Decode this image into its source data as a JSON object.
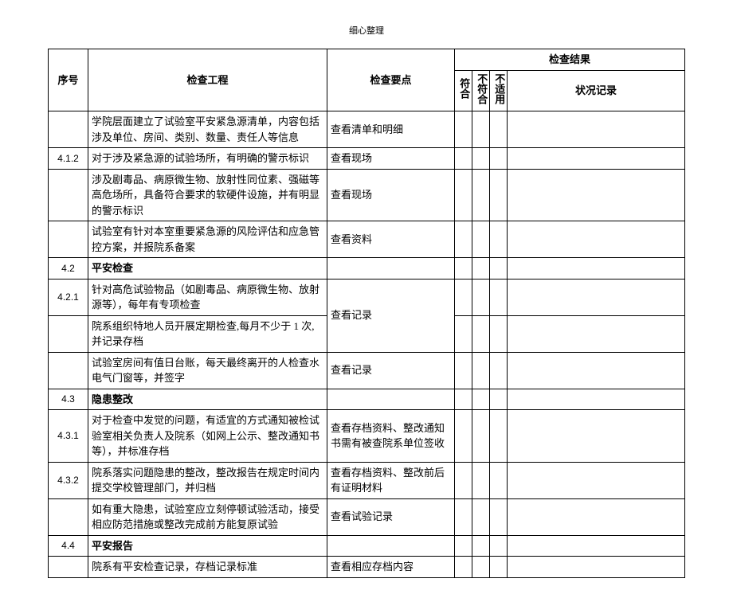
{
  "page_header": "细心整理",
  "header": {
    "seq": "序号",
    "project": "检查工程",
    "point": "检查要点",
    "result_group": "检查结果",
    "fit": "符合",
    "nofit": "不符合",
    "na": "不适用",
    "record": "状况记录"
  },
  "rows": [
    {
      "seq": "",
      "project": "学院层面建立了试验室平安紧急源清单，内容包括涉及单位、房间、类别、数量、责任人等信息",
      "point": "查看清单和明细",
      "section": false
    },
    {
      "seq": "4.1.2",
      "project": "对于涉及紧急源的试验场所，有明确的警示标识",
      "point": "查看现场",
      "section": false
    },
    {
      "seq": "",
      "project": "涉及剧毒品、病原微生物、放射性同位素、强磁等高危场所，具备符合要求的软硬件设施，并有明显的警示标识",
      "point": "查看现场",
      "section": false
    },
    {
      "seq": "",
      "project": "试验室有针对本室重要紧急源的风险评估和应急管控方案，并报院系备案",
      "point": "查看资料",
      "section": false
    },
    {
      "seq": "4.2",
      "project": "平安检查",
      "point": "",
      "section": true
    },
    {
      "seq": "4.2.1",
      "project": "针对高危试验物品（如剧毒品、病原微生物、放射源等），每年有专项检查",
      "point": "查看记录",
      "section": false,
      "merge_point_down": true
    },
    {
      "seq": "",
      "project": "院系组织特地人员开展定期检查,每月不少于 1 次,并记录存档",
      "point": "",
      "section": false,
      "merged_point": true
    },
    {
      "seq": "",
      "project": "试验室房间有值日台账，每天最终离开的人检查水电气门窗等，并签字",
      "point": "查看记录",
      "section": false
    },
    {
      "seq": "4.3",
      "project": "隐患整改",
      "point": "",
      "section": true
    },
    {
      "seq": "4.3.1",
      "project": "对于检查中发觉的问题，有适宜的方式通知被检试验室相关负责人及院系（如网上公示、整改通知书等），并标准存档",
      "point": "查看存档资料、整改通知书需有被查院系单位签收",
      "section": false
    },
    {
      "seq": "4.3.2",
      "project": "院系落实问题隐患的整改，整改报告在规定时间内提交学校管理部门，并归档",
      "point": "查看存档资料、整改前后有证明材料",
      "section": false
    },
    {
      "seq": "",
      "project": "如有重大隐患，试验室应立刻停顿试验活动，接受相应防范措施或整改完成前方能复原试验",
      "point": "查看试验记录",
      "section": false
    },
    {
      "seq": "4.4",
      "project": "平安报告",
      "point": "",
      "section": true
    },
    {
      "seq": "",
      "project": "院系有平安检查记录，存档记录标准",
      "point": "查看相应存档内容",
      "section": false
    }
  ],
  "style": {
    "background_color": "#ffffff",
    "border_color": "#000000",
    "font_size": 13,
    "header_font_weight": "bold"
  }
}
